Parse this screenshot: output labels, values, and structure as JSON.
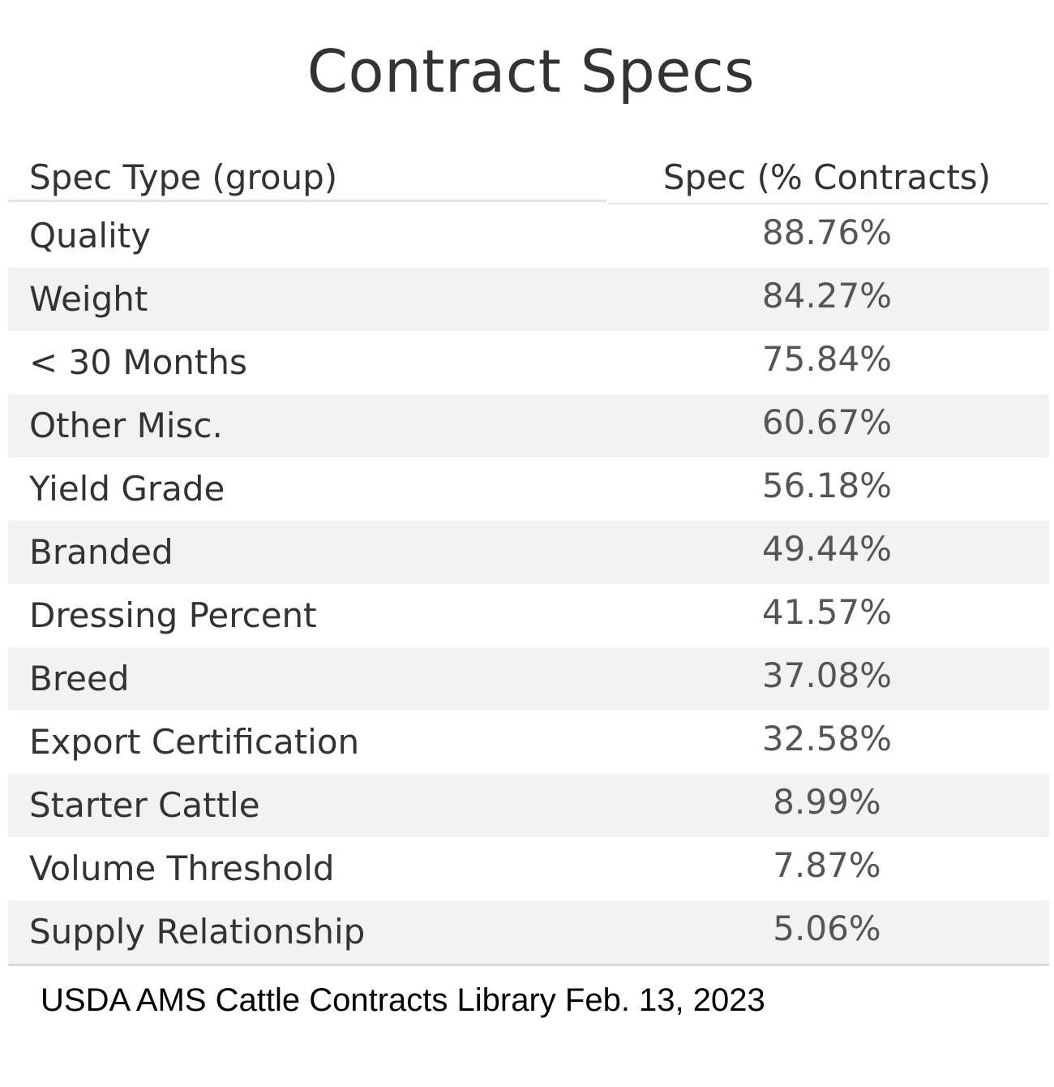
{
  "chart_data": {
    "type": "table",
    "title": "Contract Specs",
    "columns": [
      "Spec Type (group)",
      "Spec (% Contracts)"
    ],
    "rows": [
      {
        "label": "Quality",
        "value": "88.76%"
      },
      {
        "label": "Weight",
        "value": "84.27%"
      },
      {
        "label": "< 30 Months",
        "value": "75.84%"
      },
      {
        "label": "Other Misc.",
        "value": "60.67%"
      },
      {
        "label": "Yield Grade",
        "value": "56.18%"
      },
      {
        "label": "Branded",
        "value": "49.44%"
      },
      {
        "label": "Dressing Percent",
        "value": "41.57%"
      },
      {
        "label": "Breed",
        "value": "37.08%"
      },
      {
        "label": "Export Certification",
        "value": "32.58%"
      },
      {
        "label": "Starter Cattle",
        "value": "8.99%"
      },
      {
        "label": "Volume Threshold",
        "value": "7.87%"
      },
      {
        "label": "Supply Relationship",
        "value": "5.06%"
      }
    ],
    "source": "USDA AMS Cattle Contracts Library  Feb. 13, 2023"
  },
  "colors": {
    "text": "#333333",
    "value_text": "#555555",
    "stripe": "#f2f2f2",
    "rule": "#e3e3e3"
  }
}
